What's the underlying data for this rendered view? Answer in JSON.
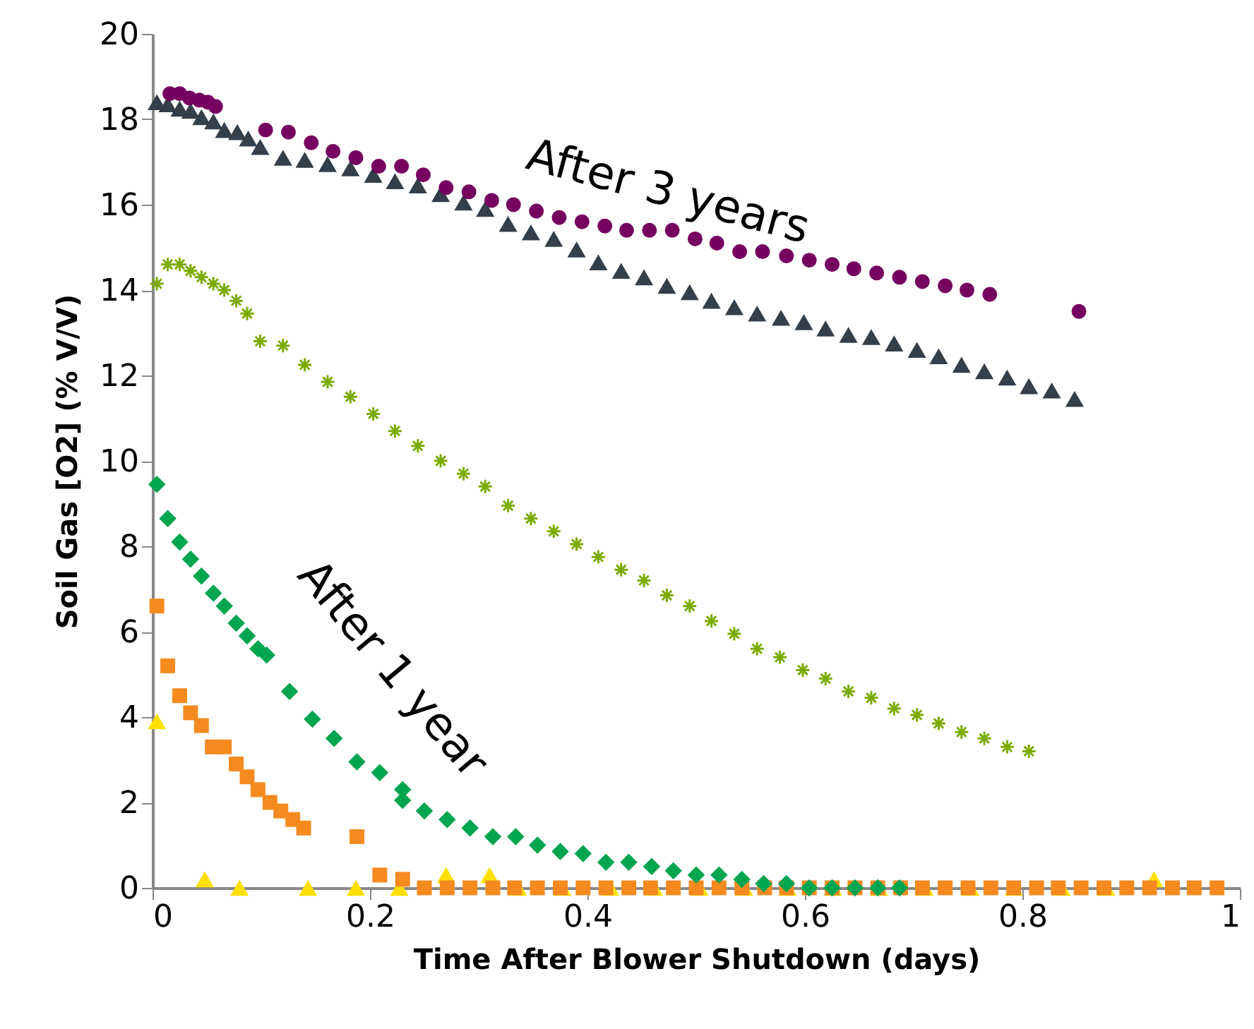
{
  "chart_data": {
    "type": "scatter",
    "xlabel": "Time After Blower Shutdown (days)",
    "ylabel": "Soil Gas [O2] (% V/V)",
    "xlim": [
      0,
      1
    ],
    "xticks": [
      0,
      0.2,
      0.4,
      0.6,
      0.8,
      1
    ],
    "ylim": [
      0,
      20
    ],
    "yticks": [
      0,
      2,
      4,
      6,
      8,
      10,
      12,
      14,
      16,
      18,
      20
    ],
    "grid": false,
    "annotations": [
      "After 3 years",
      "After 1 year"
    ],
    "series": [
      {
        "color": "#333f4a",
        "marker": "triangle",
        "x": [
          0.004,
          0.014,
          0.025,
          0.035,
          0.045,
          0.056,
          0.066,
          0.078,
          0.088,
          0.099,
          0.12,
          0.14,
          0.161,
          0.182,
          0.203,
          0.223,
          0.244,
          0.265,
          0.286,
          0.306,
          0.327,
          0.348,
          0.369,
          0.39,
          0.41,
          0.431,
          0.452,
          0.473,
          0.494,
          0.514,
          0.535,
          0.556,
          0.578,
          0.599,
          0.619,
          0.64,
          0.661,
          0.682,
          0.703,
          0.723,
          0.744,
          0.765,
          0.786,
          0.806,
          0.827,
          0.848
        ],
        "values": [
          18.4,
          18.35,
          18.25,
          18.2,
          18.05,
          17.95,
          17.75,
          17.7,
          17.55,
          17.35,
          17.1,
          17.05,
          16.95,
          16.85,
          16.7,
          16.55,
          16.45,
          16.25,
          16.05,
          15.9,
          15.55,
          15.35,
          15.2,
          14.95,
          14.65,
          14.45,
          14.3,
          14.1,
          13.95,
          13.75,
          13.6,
          13.45,
          13.35,
          13.25,
          13.1,
          12.95,
          12.9,
          12.75,
          12.6,
          12.45,
          12.25,
          12.1,
          11.95,
          11.75,
          11.65,
          11.45
        ]
      },
      {
        "color": "#750060",
        "marker": "circle",
        "x": [
          0.016,
          0.025,
          0.034,
          0.043,
          0.051,
          0.058,
          0.104,
          0.125,
          0.146,
          0.166,
          0.187,
          0.208,
          0.229,
          0.249,
          0.27,
          0.291,
          0.312,
          0.332,
          0.353,
          0.374,
          0.395,
          0.416,
          0.436,
          0.457,
          0.478,
          0.499,
          0.519,
          0.54,
          0.561,
          0.583,
          0.604,
          0.625,
          0.645,
          0.666,
          0.687,
          0.708,
          0.729,
          0.749,
          0.77,
          0.852
        ],
        "values": [
          18.6,
          18.6,
          18.5,
          18.45,
          18.4,
          18.3,
          17.75,
          17.7,
          17.45,
          17.25,
          17.1,
          16.9,
          16.9,
          16.7,
          16.4,
          16.3,
          16.1,
          16.0,
          15.85,
          15.7,
          15.6,
          15.5,
          15.4,
          15.4,
          15.4,
          15.2,
          15.1,
          14.9,
          14.9,
          14.8,
          14.7,
          14.6,
          14.5,
          14.4,
          14.3,
          14.2,
          14.1,
          14.0,
          13.9,
          13.5
        ]
      },
      {
        "color": "#7aac00",
        "marker": "cross",
        "x": [
          0.004,
          0.014,
          0.025,
          0.035,
          0.045,
          0.056,
          0.066,
          0.077,
          0.087,
          0.099,
          0.12,
          0.14,
          0.161,
          0.182,
          0.203,
          0.223,
          0.244,
          0.265,
          0.286,
          0.306,
          0.327,
          0.348,
          0.369,
          0.39,
          0.41,
          0.431,
          0.452,
          0.473,
          0.494,
          0.514,
          0.535,
          0.556,
          0.577,
          0.598,
          0.619,
          0.64,
          0.661,
          0.682,
          0.703,
          0.723,
          0.744,
          0.765,
          0.786,
          0.806
        ],
        "values": [
          14.15,
          14.6,
          14.6,
          14.45,
          14.3,
          14.15,
          14.0,
          13.75,
          13.45,
          12.8,
          12.7,
          12.25,
          11.85,
          11.5,
          11.1,
          10.7,
          10.35,
          10.0,
          9.7,
          9.4,
          8.95,
          8.65,
          8.35,
          8.05,
          7.75,
          7.45,
          7.2,
          6.85,
          6.6,
          6.25,
          5.95,
          5.6,
          5.4,
          5.1,
          4.9,
          4.6,
          4.45,
          4.2,
          4.05,
          3.85,
          3.65,
          3.5,
          3.3,
          3.2
        ]
      },
      {
        "color": "#ffe000",
        "marker": "triangle",
        "x": [
          0.004,
          0.048,
          0.08,
          0.143,
          0.187,
          0.227,
          0.27,
          0.31,
          0.336,
          0.377,
          0.421,
          0.461,
          0.503,
          0.544,
          0.584,
          0.626,
          0.668,
          0.71,
          0.752,
          0.792,
          0.836,
          0.877,
          0.921
        ],
        "values": [
          3.9,
          0.2,
          0,
          0,
          0,
          0,
          0.3,
          0.3,
          0,
          0,
          0,
          0,
          0,
          0,
          0,
          0,
          0,
          0,
          0,
          0,
          0,
          0,
          0.2
        ]
      },
      {
        "color": "#f58a1f",
        "marker": "square",
        "x": [
          0.004,
          0.014,
          0.025,
          0.035,
          0.045,
          0.055,
          0.066,
          0.077,
          0.087,
          0.097,
          0.108,
          0.118,
          0.129,
          0.139,
          0.188,
          0.209,
          0.23,
          0.25,
          0.271,
          0.292,
          0.313,
          0.333,
          0.354,
          0.375,
          0.396,
          0.417,
          0.438,
          0.458,
          0.479,
          0.5,
          0.521,
          0.542,
          0.563,
          0.583,
          0.604,
          0.625,
          0.646,
          0.667,
          0.688,
          0.708,
          0.729,
          0.75,
          0.771,
          0.792,
          0.813,
          0.833,
          0.854,
          0.875,
          0.896,
          0.917,
          0.938,
          0.958,
          0.979
        ],
        "values": [
          6.6,
          5.2,
          4.5,
          4.1,
          3.8,
          3.3,
          3.3,
          2.9,
          2.6,
          2.3,
          2.0,
          1.8,
          1.6,
          1.4,
          1.2,
          0.3,
          0.2,
          0,
          0,
          0,
          0,
          0,
          0,
          0,
          0,
          0,
          0,
          0,
          0,
          0,
          0,
          0,
          0,
          0,
          0,
          0,
          0,
          0,
          0,
          0,
          0,
          0,
          0,
          0,
          0,
          0,
          0,
          0,
          0,
          0,
          0,
          0,
          0
        ]
      },
      {
        "color": "#00a550",
        "marker": "diamond",
        "x": [
          0.004,
          0.014,
          0.025,
          0.035,
          0.045,
          0.056,
          0.066,
          0.077,
          0.087,
          0.097,
          0.105,
          0.126,
          0.147,
          0.167,
          0.188,
          0.209,
          0.23,
          0.23,
          0.25,
          0.271,
          0.292,
          0.313,
          0.334,
          0.354,
          0.375,
          0.396,
          0.417,
          0.438,
          0.459,
          0.479,
          0.5,
          0.521,
          0.542,
          0.562,
          0.583,
          0.604,
          0.625,
          0.646,
          0.667,
          0.687
        ],
        "values": [
          9.45,
          8.65,
          8.1,
          7.7,
          7.3,
          6.9,
          6.6,
          6.2,
          5.9,
          5.6,
          5.45,
          4.6,
          3.95,
          3.5,
          2.95,
          2.7,
          2.3,
          2.05,
          1.8,
          1.6,
          1.4,
          1.2,
          1.2,
          1.0,
          0.85,
          0.8,
          0.6,
          0.6,
          0.5,
          0.4,
          0.3,
          0.3,
          0.2,
          0.1,
          0.1,
          0,
          0,
          0,
          0,
          0
        ]
      }
    ]
  }
}
